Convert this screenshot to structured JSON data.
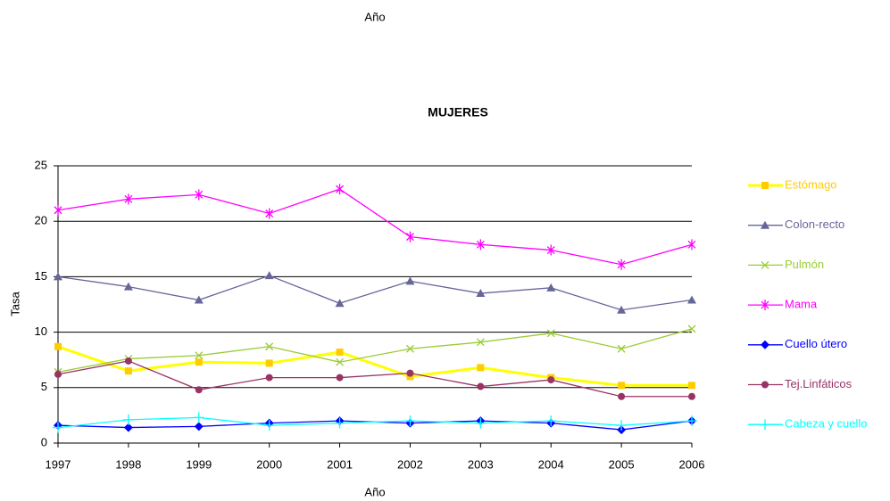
{
  "page_text": "Año",
  "chart_data": {
    "type": "line",
    "title": "MUJERES",
    "x_label": "Año",
    "y_label": "Tasa",
    "categories": [
      "1997",
      "1998",
      "1999",
      "2000",
      "2001",
      "2002",
      "2003",
      "2004",
      "2005",
      "2006"
    ],
    "ylim": [
      0,
      25
    ],
    "yticks": [
      0,
      5,
      10,
      15,
      20,
      25
    ],
    "grid": true,
    "legend": "right",
    "series": [
      {
        "name": "Estómago",
        "color": "#ffcc00",
        "line_color": "#ffff00",
        "marker": "square",
        "values": [
          8.7,
          6.5,
          7.3,
          7.2,
          8.2,
          6.0,
          6.8,
          5.9,
          5.2,
          5.2
        ]
      },
      {
        "name": "Colon-recto",
        "color": "#666699",
        "marker": "triangle",
        "values": [
          15.0,
          14.1,
          12.9,
          15.1,
          12.6,
          14.6,
          13.5,
          14.0,
          12.0,
          12.9
        ]
      },
      {
        "name": "Pulmón",
        "color": "#99cc33",
        "marker": "x",
        "values": [
          6.4,
          7.6,
          7.9,
          8.7,
          7.3,
          8.5,
          9.1,
          9.9,
          8.5,
          10.3
        ]
      },
      {
        "name": "Mama",
        "color": "#ff00ff",
        "marker": "star",
        "values": [
          21.0,
          22.0,
          22.4,
          20.7,
          22.9,
          18.6,
          17.9,
          17.4,
          16.1,
          17.9
        ]
      },
      {
        "name": "Cuello útero",
        "color": "#0000ff",
        "marker": "diamond",
        "values": [
          1.6,
          1.4,
          1.5,
          1.8,
          2.0,
          1.8,
          2.0,
          1.8,
          1.2,
          2.0
        ]
      },
      {
        "name": "Tej.Linfáticos",
        "color": "#993366",
        "marker": "circle",
        "values": [
          6.2,
          7.4,
          4.8,
          5.9,
          5.9,
          6.3,
          5.1,
          5.7,
          4.2,
          4.2
        ]
      },
      {
        "name": "Cabeza y cuello",
        "color": "#00ffff",
        "marker": "plus",
        "values": [
          1.4,
          2.1,
          2.3,
          1.6,
          1.8,
          2.0,
          1.8,
          2.0,
          1.6,
          2.0
        ]
      }
    ]
  }
}
